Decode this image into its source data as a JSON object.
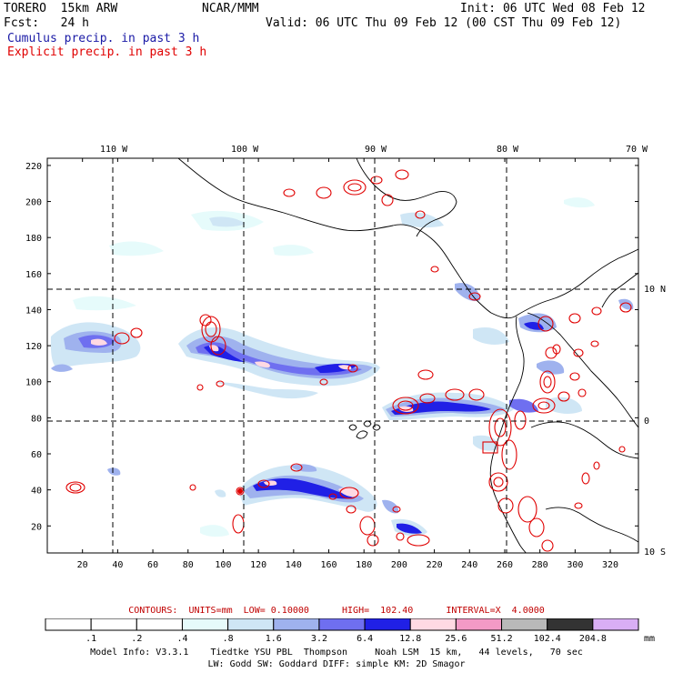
{
  "header": {
    "model": "TORERO  15km ARW",
    "org": "NCAR/MMM",
    "init": "Init: 06 UTC Wed 08 Feb 12",
    "fcst": "Fcst:   24 h",
    "valid": "Valid: 06 UTC Thu 09 Feb 12 (00 CST Thu 09 Feb 12)"
  },
  "legend": {
    "cumulus": "Cumulus precip. in past 3 h",
    "explicit": "Explicit precip. in past 3 h",
    "cumulus_color": "#1a1aa6",
    "explicit_color": "#e00000"
  },
  "map": {
    "lon_labels": [
      "110 W",
      "100 W",
      "90 W",
      "80 W",
      "70 W"
    ],
    "lat_labels": [
      "10 N",
      "0",
      "10 S"
    ],
    "x_ticks": [
      "20",
      "40",
      "60",
      "80",
      "100",
      "120",
      "140",
      "160",
      "180",
      "200",
      "220",
      "240",
      "260",
      "280",
      "300",
      "320"
    ],
    "y_ticks": [
      "20",
      "40",
      "60",
      "80",
      "100",
      "120",
      "140",
      "160",
      "180",
      "200",
      "220"
    ],
    "x_range": [
      0,
      336
    ],
    "y_range": [
      5,
      224
    ]
  },
  "contours_text": "CONTOURS:  UNITS=mm  LOW= 0.10000      HIGH=  102.40      INTERVAL=X  4.0000",
  "colorbar": {
    "labels": [
      ".1",
      ".2",
      ".4",
      ".8",
      "1.6",
      "3.2",
      "6.4",
      "12.8",
      "25.6",
      "51.2",
      "102.4",
      "204.8"
    ],
    "unit": "mm",
    "colors": [
      "#ffffff",
      "#ffffff",
      "#ffffff",
      "#e6fbfb",
      "#cfe6f5",
      "#9fb2ee",
      "#6f6ff0",
      "#2020e6",
      "#ffd9e3",
      "#f39ac6",
      "#b9b9b9",
      "#333333",
      "#d9aef5"
    ]
  },
  "footer": {
    "line1": "Model Info: V3.3.1    Tiedtke YSU PBL  Thompson     Noah LSM  15 km,   44 levels,   70 sec",
    "line2": "LW: Godd SW: Goddard DIFF: simple KM: 2D Smagor"
  }
}
